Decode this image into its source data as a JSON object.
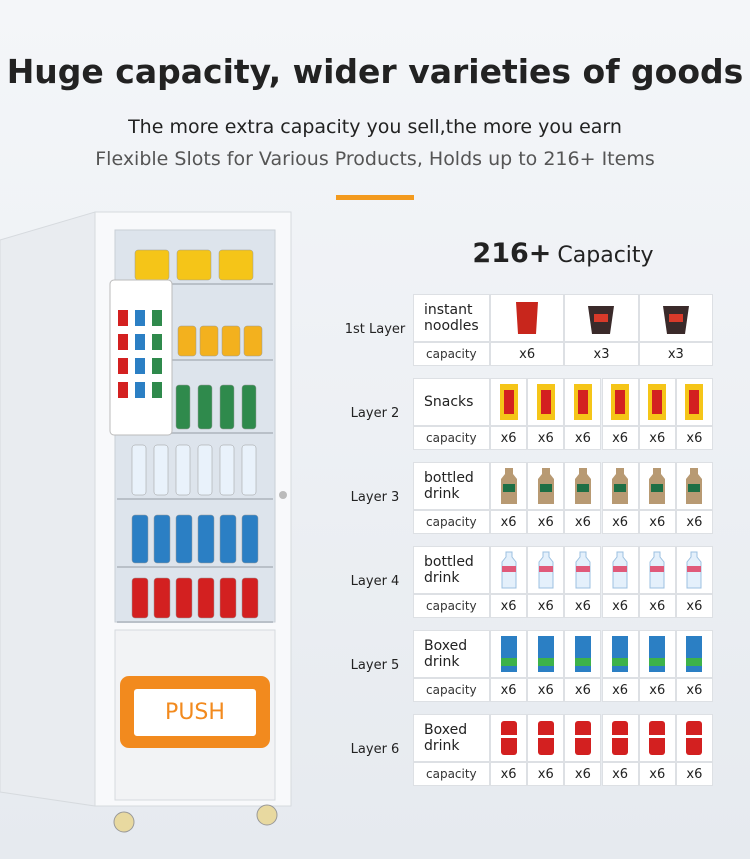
{
  "header": {
    "title": "Huge capacity, wider varieties of goods",
    "subtitle": "The more extra capacity you sell,the more you earn",
    "tagline": "Flexible Slots for Various Products, Holds up to 216+ Items"
  },
  "capacity": {
    "value": "216+",
    "label": "Capacity"
  },
  "machine": {
    "button": "PUSH"
  },
  "layers": [
    {
      "label": "1st Layer",
      "product": "instant noodles",
      "capacity_label": "capacity",
      "counts": [
        "x6",
        "x3",
        "x3"
      ]
    },
    {
      "label": "Layer 2",
      "product": "Snacks",
      "capacity_label": "capacity",
      "counts": [
        "x6",
        "x6",
        "x6",
        "x6",
        "x6",
        "x6"
      ]
    },
    {
      "label": "Layer 3",
      "product": "bottled drink",
      "capacity_label": "capacity",
      "counts": [
        "x6",
        "x6",
        "x6",
        "x6",
        "x6",
        "x6"
      ]
    },
    {
      "label": "Layer 4",
      "product": "bottled drink",
      "capacity_label": "capacity",
      "counts": [
        "x6",
        "x6",
        "x6",
        "x6",
        "x6",
        "x6"
      ]
    },
    {
      "label": "Layer 5",
      "product": "Boxed drink",
      "capacity_label": "capacity",
      "counts": [
        "x6",
        "x6",
        "x6",
        "x6",
        "x6",
        "x6"
      ]
    },
    {
      "label": "Layer 6",
      "product": "Boxed drink",
      "capacity_label": "capacity",
      "counts": [
        "x6",
        "x6",
        "x6",
        "x6",
        "x6",
        "x6"
      ]
    }
  ]
}
